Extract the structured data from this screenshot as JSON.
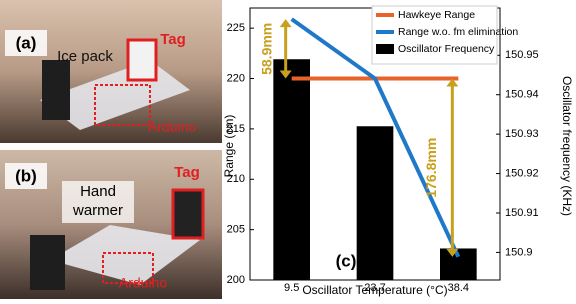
{
  "chart_data": {
    "type": "bar",
    "categories": [
      "9.5",
      "23.7",
      "38.4"
    ],
    "xlabel": "Oscillator Temperature (°C)",
    "ylabel": "Range (cm)",
    "y2label": "Oscillator frequency (KHz)",
    "ylim": [
      200,
      227
    ],
    "yticks": [
      200,
      205,
      210,
      215,
      220,
      225
    ],
    "y2lim": [
      150.893,
      150.962
    ],
    "y2ticks": [
      150.9,
      150.91,
      150.92,
      150.93,
      150.94,
      150.95
    ],
    "series": [
      {
        "name": "Hawkeye Range",
        "color": "#e8622a",
        "kind": "line",
        "values": [
          220,
          220,
          220
        ]
      },
      {
        "name": "Range w.o. fm elimination",
        "color": "#1f78c8",
        "kind": "line",
        "values": [
          225.9,
          220,
          202.3
        ]
      },
      {
        "name": "Oscillator Frequency",
        "color": "#000000",
        "kind": "bar",
        "axis": "y2",
        "values": [
          150.949,
          150.932,
          150.901
        ]
      }
    ],
    "annotations": [
      "58.9mm",
      "176.8mm"
    ],
    "panel_label": "(c)"
  },
  "photos": [
    {
      "label": "(a)",
      "object": "Ice pack",
      "tag": "Tag",
      "board": "Arduino"
    },
    {
      "label": "(b)",
      "object": [
        "Hand",
        "warmer"
      ],
      "tag": "Tag",
      "board": "Arduino"
    }
  ]
}
